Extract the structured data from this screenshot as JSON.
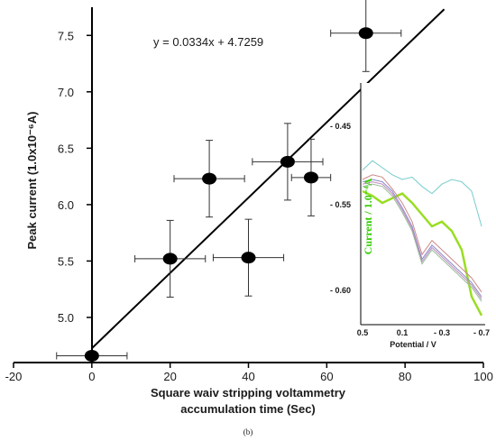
{
  "chart_data": [
    {
      "type": "scatter",
      "xlabel": [
        "Square waiv stripping voltammetry",
        "accumulation time (Sec)"
      ],
      "ylabel": "Peak current (1.0x10⁻⁶A)",
      "xlim": [
        -20,
        100
      ],
      "ylim": [
        4.6,
        7.75
      ],
      "x_ticks": [
        "-20",
        "0",
        "20",
        "40",
        "60",
        "80",
        "100"
      ],
      "y_ticks": [
        "5.0",
        "5.5",
        "6.0",
        "6.5",
        "7.0",
        "7.5"
      ],
      "points": [
        {
          "x": 0,
          "y": 4.66,
          "xerr": 9,
          "yerr": 0
        },
        {
          "x": 20,
          "y": 5.52,
          "xerr": 9,
          "yerr": 0.34
        },
        {
          "x": 30,
          "y": 6.23,
          "xerr": 9,
          "yerr": 0.34
        },
        {
          "x": 40,
          "y": 5.53,
          "xerr": 9,
          "yerr": 0.34
        },
        {
          "x": 50,
          "y": 6.38,
          "xerr": 9,
          "yerr": 0.34
        },
        {
          "x": 56,
          "y": 6.24,
          "xerr": 5,
          "yerr": 0.34
        },
        {
          "x": 70,
          "y": 7.52,
          "xerr": 9,
          "yerr": 0.34
        }
      ],
      "trendline": {
        "slope": 0.0334,
        "intercept": 4.7259,
        "equation": "y = 0.0334x + 4.7259"
      },
      "caption": "(b)"
    },
    {
      "type": "line",
      "role": "inset",
      "xlabel": "Potential / V",
      "ylabel": "Current / 1.0⁻⁴A",
      "x_ticks": [
        "0.5",
        "0.1",
        "- 0.3",
        "- 0.7"
      ],
      "y_ticks": [
        "- 0.45",
        "- 0.55",
        "- 0.60"
      ],
      "series": [
        {
          "color": "#99dd22",
          "values": [
            0.45,
            0.47,
            0.5,
            0.48,
            0.46,
            0.5,
            0.55,
            0.6,
            0.58,
            0.62,
            0.7,
            0.9,
            0.98
          ]
        },
        {
          "color": "#77cccc",
          "values": [
            0.36,
            0.32,
            0.35,
            0.38,
            0.4,
            0.39,
            0.43,
            0.46,
            0.42,
            0.4,
            0.41,
            0.45,
            0.6
          ]
        },
        {
          "color": "#cc8888",
          "values": [
            0.4,
            0.38,
            0.39,
            0.44,
            0.5,
            0.58,
            0.72,
            0.66,
            0.7,
            0.74,
            0.78,
            0.82,
            0.88
          ]
        },
        {
          "color": "#8888cc",
          "values": [
            0.41,
            0.4,
            0.41,
            0.45,
            0.52,
            0.6,
            0.74,
            0.68,
            0.72,
            0.76,
            0.8,
            0.84,
            0.9
          ]
        },
        {
          "color": "#bb88bb",
          "values": [
            0.42,
            0.41,
            0.42,
            0.46,
            0.53,
            0.61,
            0.75,
            0.69,
            0.73,
            0.77,
            0.81,
            0.85,
            0.91
          ]
        },
        {
          "color": "#99bb99",
          "values": [
            0.43,
            0.42,
            0.43,
            0.47,
            0.54,
            0.62,
            0.76,
            0.7,
            0.74,
            0.78,
            0.82,
            0.86,
            0.92
          ]
        }
      ]
    }
  ]
}
